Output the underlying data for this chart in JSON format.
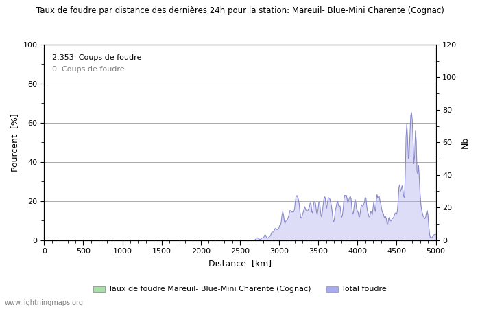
{
  "title": "Taux de foudre par distance des dernières 24h pour la station: Mareuil- Blue-Mini Charente (Cognac)",
  "xlabel": "Distance  [km]",
  "ylabel_left": "Pourcent  [%]",
  "ylabel_right": "Nb",
  "annotation1": "2.353  Coups de foudre",
  "annotation2": "0  Coups de foudre",
  "xlim": [
    0,
    5000
  ],
  "ylim_left": [
    0,
    100
  ],
  "ylim_right": [
    0,
    120
  ],
  "yticks_left": [
    0,
    20,
    40,
    60,
    80,
    100
  ],
  "yticks_right": [
    0,
    20,
    40,
    60,
    80,
    100,
    120
  ],
  "xticks": [
    0,
    500,
    1000,
    1500,
    2000,
    2500,
    3000,
    3500,
    4000,
    4500,
    5000
  ],
  "legend_green_label": "Taux de foudre Mareuil- Blue-Mini Charente (Cognac)",
  "legend_blue_label": "Total foudre",
  "watermark": "www.lightningmaps.org",
  "fill_color_blue": "#aaaaee",
  "line_color_blue": "#8888cc",
  "fill_color_green": "#aaddaa",
  "background_color": "#ffffff",
  "grid_color": "#aaaaaa"
}
